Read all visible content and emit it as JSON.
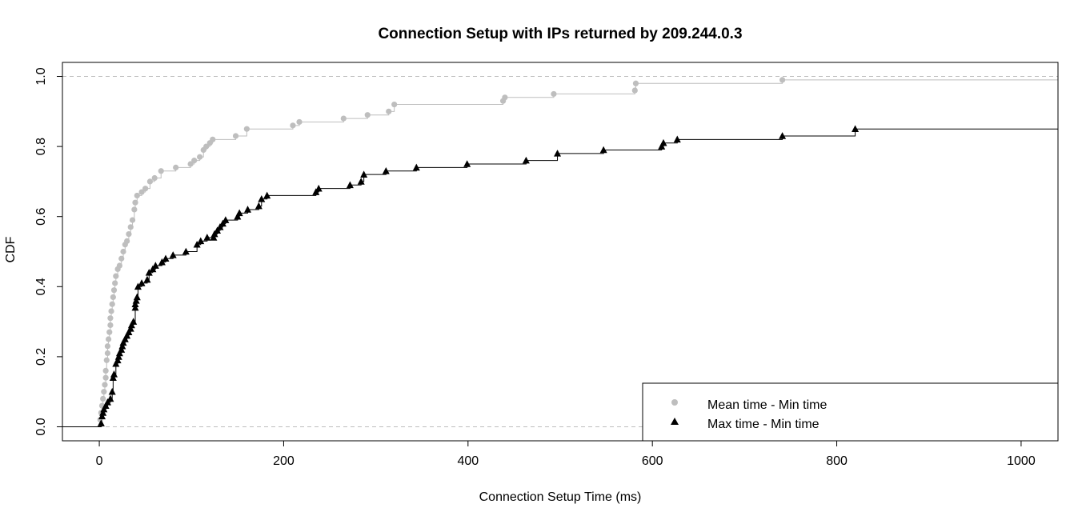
{
  "chart_data": {
    "type": "line",
    "subtype": "step-cdf",
    "title": "Connection Setup with IPs returned by 209.244.0.3",
    "xlabel": "Connection Setup Time (ms)",
    "ylabel": "CDF",
    "xlim": [
      -40,
      1040
    ],
    "ylim": [
      -0.04,
      1.04
    ],
    "xticks": [
      0,
      200,
      400,
      600,
      800,
      1000
    ],
    "yticks": [
      0.0,
      0.2,
      0.4,
      0.6,
      0.8,
      1.0
    ],
    "xtick_labels": [
      "0",
      "200",
      "400",
      "600",
      "800",
      "1000"
    ],
    "ytick_labels": [
      "0.0",
      "0.2",
      "0.4",
      "0.6",
      "0.8",
      "1.0"
    ],
    "reference_lines": [
      0,
      1
    ],
    "grid": false,
    "legend_position": "bottom-right",
    "series": [
      {
        "name": "Mean time - Min time",
        "color": "#bebebe",
        "marker": "circle",
        "points": [
          [
            1,
            0.02
          ],
          [
            2,
            0.04
          ],
          [
            3,
            0.06
          ],
          [
            4,
            0.08
          ],
          [
            5,
            0.1
          ],
          [
            6,
            0.12
          ],
          [
            7,
            0.14
          ],
          [
            7,
            0.16
          ],
          [
            8,
            0.19
          ],
          [
            9,
            0.21
          ],
          [
            9,
            0.23
          ],
          [
            10,
            0.25
          ],
          [
            11,
            0.27
          ],
          [
            12,
            0.29
          ],
          [
            12,
            0.31
          ],
          [
            13,
            0.33
          ],
          [
            14,
            0.35
          ],
          [
            15,
            0.37
          ],
          [
            16,
            0.39
          ],
          [
            17,
            0.41
          ],
          [
            18,
            0.43
          ],
          [
            20,
            0.45
          ],
          [
            22,
            0.46
          ],
          [
            24,
            0.48
          ],
          [
            26,
            0.5
          ],
          [
            28,
            0.52
          ],
          [
            30,
            0.53
          ],
          [
            32,
            0.55
          ],
          [
            34,
            0.57
          ],
          [
            36,
            0.59
          ],
          [
            38,
            0.62
          ],
          [
            39,
            0.64
          ],
          [
            41,
            0.66
          ],
          [
            46,
            0.67
          ],
          [
            50,
            0.68
          ],
          [
            55,
            0.7
          ],
          [
            60,
            0.71
          ],
          [
            67,
            0.73
          ],
          [
            83,
            0.74
          ],
          [
            99,
            0.75
          ],
          [
            103,
            0.76
          ],
          [
            109,
            0.77
          ],
          [
            113,
            0.79
          ],
          [
            116,
            0.8
          ],
          [
            120,
            0.81
          ],
          [
            123,
            0.82
          ],
          [
            148,
            0.83
          ],
          [
            160,
            0.85
          ],
          [
            210,
            0.86
          ],
          [
            217,
            0.87
          ],
          [
            265,
            0.88
          ],
          [
            291,
            0.89
          ],
          [
            314,
            0.9
          ],
          [
            320,
            0.92
          ],
          [
            438,
            0.93
          ],
          [
            440,
            0.94
          ],
          [
            493,
            0.95
          ],
          [
            581,
            0.96
          ],
          [
            582,
            0.98
          ],
          [
            741,
            0.99
          ]
        ]
      },
      {
        "name": "Max time - Min time",
        "color": "#000000",
        "marker": "triangle",
        "points": [
          [
            2,
            0.01
          ],
          [
            3,
            0.03
          ],
          [
            4,
            0.04
          ],
          [
            5,
            0.05
          ],
          [
            7,
            0.06
          ],
          [
            9,
            0.07
          ],
          [
            12,
            0.08
          ],
          [
            14,
            0.1
          ],
          [
            15,
            0.14
          ],
          [
            16,
            0.15
          ],
          [
            18,
            0.18
          ],
          [
            20,
            0.19
          ],
          [
            21,
            0.2
          ],
          [
            22,
            0.21
          ],
          [
            24,
            0.22
          ],
          [
            25,
            0.23
          ],
          [
            26,
            0.24
          ],
          [
            28,
            0.25
          ],
          [
            30,
            0.26
          ],
          [
            32,
            0.27
          ],
          [
            34,
            0.28
          ],
          [
            35,
            0.29
          ],
          [
            37,
            0.3
          ],
          [
            39,
            0.34
          ],
          [
            39,
            0.35
          ],
          [
            40,
            0.36
          ],
          [
            41,
            0.37
          ],
          [
            42,
            0.4
          ],
          [
            46,
            0.41
          ],
          [
            52,
            0.42
          ],
          [
            54,
            0.44
          ],
          [
            58,
            0.45
          ],
          [
            61,
            0.46
          ],
          [
            68,
            0.47
          ],
          [
            72,
            0.48
          ],
          [
            80,
            0.49
          ],
          [
            94,
            0.5
          ],
          [
            106,
            0.52
          ],
          [
            110,
            0.53
          ],
          [
            117,
            0.54
          ],
          [
            124,
            0.54
          ],
          [
            125,
            0.55
          ],
          [
            128,
            0.56
          ],
          [
            131,
            0.57
          ],
          [
            134,
            0.58
          ],
          [
            137,
            0.59
          ],
          [
            150,
            0.6
          ],
          [
            152,
            0.61
          ],
          [
            161,
            0.62
          ],
          [
            173,
            0.63
          ],
          [
            176,
            0.65
          ],
          [
            182,
            0.66
          ],
          [
            235,
            0.67
          ],
          [
            238,
            0.68
          ],
          [
            272,
            0.69
          ],
          [
            284,
            0.7
          ],
          [
            287,
            0.72
          ],
          [
            311,
            0.73
          ],
          [
            344,
            0.74
          ],
          [
            399,
            0.75
          ],
          [
            463,
            0.76
          ],
          [
            497,
            0.78
          ],
          [
            547,
            0.79
          ],
          [
            610,
            0.8
          ],
          [
            612,
            0.81
          ],
          [
            627,
            0.82
          ],
          [
            741,
            0.83
          ],
          [
            820,
            0.85
          ]
        ]
      }
    ]
  }
}
